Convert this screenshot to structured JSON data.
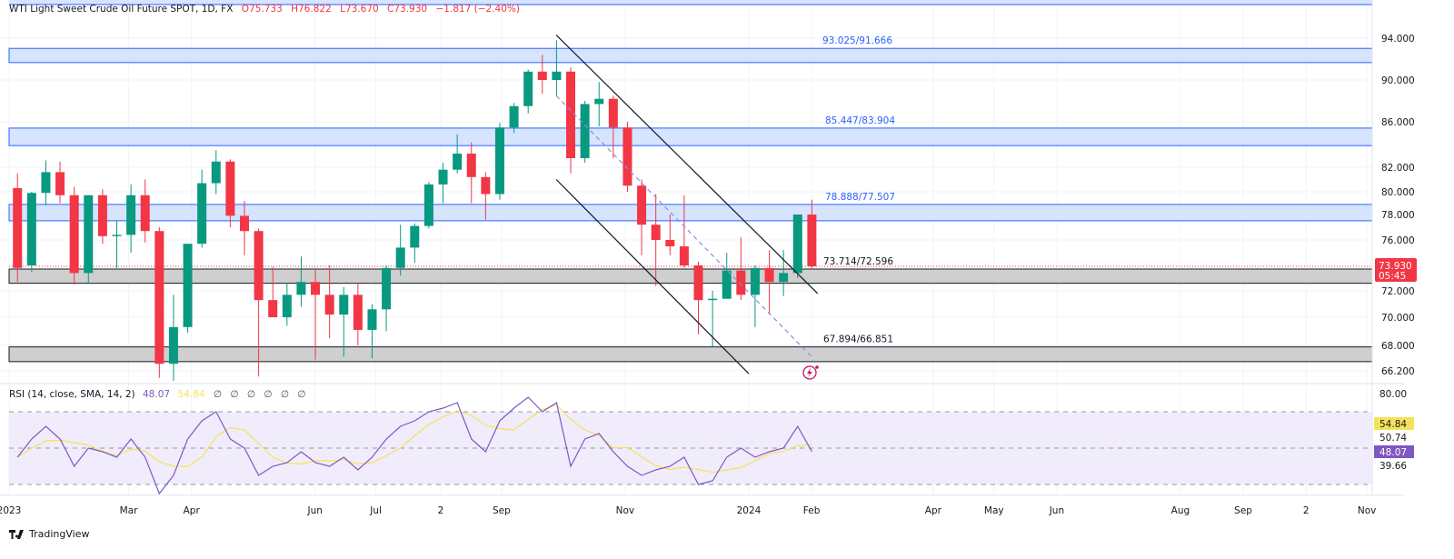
{
  "header": {
    "symbol": "WTI Light Sweet Crude Oil Future SPOT, 1D, FX",
    "open": "O75.733",
    "high": "H76.822",
    "low": "L73.670",
    "close": "C73.930",
    "change": "−1.817 (−2.40%)"
  },
  "rsi_legend": {
    "label": "RSI (14, close, SMA, 14, 2)",
    "rsi_value": "48.07",
    "sma_value": "54.84",
    "extras": [
      "∅",
      "∅",
      "∅",
      "∅",
      "∅",
      "∅"
    ]
  },
  "brand": "TradingView",
  "colors": {
    "up": "#089981",
    "down": "#f23645",
    "zone_blue": "#d6e4ff",
    "zone_blue_border": "#2962ff",
    "zone_gray": "#cfcfcf",
    "rsi": "#7e57c2",
    "rsi_sma": "#f5e25b",
    "rsi_band": "#f1ecfb",
    "channel": "#131722",
    "dashed": "#8c8ce0"
  },
  "chart_data": [
    {
      "type": "candlestick",
      "title": "WTI Light Sweet Crude Oil Future SPOT, 1D, FX",
      "y_scale": "log",
      "price_ticks": [
        "94.000",
        "90.000",
        "86.000",
        "82.000",
        "80.000",
        "78.000",
        "76.000",
        "72.000",
        "70.000",
        "68.000",
        "66.200"
      ],
      "tick_values": [
        94,
        90,
        86,
        82,
        80,
        78,
        76,
        72,
        70,
        68,
        66.2
      ],
      "last_price": "73.930",
      "countdown": "05:45",
      "x_ticks": [
        {
          "label": "2023",
          "date": "2023-01-01"
        },
        {
          "label": "Mar",
          "date": "2023-03-01"
        },
        {
          "label": "Apr",
          "date": "2023-04-01"
        },
        {
          "label": "Jun",
          "date": "2023-06-01"
        },
        {
          "label": "Jul",
          "date": "2023-07-01"
        },
        {
          "label": "2",
          "date": "2023-08-02"
        },
        {
          "label": "Sep",
          "date": "2023-09-01"
        },
        {
          "label": "Nov",
          "date": "2023-11-01"
        },
        {
          "label": "2024",
          "date": "2024-01-01"
        },
        {
          "label": "Feb",
          "date": "2024-02-01"
        },
        {
          "label": "Apr",
          "date": "2024-04-01"
        },
        {
          "label": "May",
          "date": "2024-05-01"
        },
        {
          "label": "Jun",
          "date": "2024-06-01"
        },
        {
          "label": "Aug",
          "date": "2024-08-01"
        },
        {
          "label": "Sep",
          "date": "2024-09-01"
        },
        {
          "label": "2",
          "date": "2024-10-02"
        },
        {
          "label": "Nov",
          "date": "2024-11-01"
        }
      ],
      "zones": [
        {
          "label": "93.025/91.666",
          "top": 93.025,
          "bottom": 91.666,
          "style": "blue"
        },
        {
          "label": "85.447/83.904",
          "top": 85.447,
          "bottom": 83.904,
          "style": "blue"
        },
        {
          "label": "78.888/77.507",
          "top": 78.888,
          "bottom": 77.507,
          "style": "blue"
        },
        {
          "label": "73.714/72.596",
          "top": 73.714,
          "bottom": 72.596,
          "style": "gray"
        },
        {
          "label": "67.894/66.851",
          "top": 67.894,
          "bottom": 66.851,
          "style": "gray"
        }
      ],
      "channel": {
        "upper": [
          {
            "date": "2023-09-28",
            "price": 94.3
          },
          {
            "date": "2024-02-04",
            "price": 71.8
          }
        ],
        "lower": [
          {
            "date": "2023-09-28",
            "price": 81.0
          },
          {
            "date": "2024-01-01",
            "price": 66.0
          }
        ],
        "midline_dashed": [
          {
            "date": "2023-09-28",
            "price": 88.5
          },
          {
            "date": "2024-02-01",
            "price": 67.2
          }
        ]
      },
      "candles": [
        [
          "2023-01-02",
          80.3,
          81.5,
          72.7,
          73.8
        ],
        [
          "2023-01-09",
          74,
          80,
          73.5,
          79.9
        ],
        [
          "2023-01-16",
          79.9,
          82.6,
          78.8,
          81.6
        ],
        [
          "2023-01-23",
          81.6,
          82.5,
          79,
          79.7
        ],
        [
          "2023-01-30",
          79.7,
          80.4,
          72.5,
          73.4
        ],
        [
          "2023-02-06",
          73.4,
          79.6,
          72.6,
          79.7
        ],
        [
          "2023-02-13",
          79.7,
          80.2,
          75.7,
          76.3
        ],
        [
          "2023-02-20",
          76.3,
          77.5,
          73.8,
          76.4
        ],
        [
          "2023-02-27",
          76.4,
          80.6,
          75,
          79.7
        ],
        [
          "2023-03-06",
          79.7,
          81,
          75.8,
          76.7
        ],
        [
          "2023-03-13",
          76.7,
          77,
          65.7,
          66.7
        ],
        [
          "2023-03-20",
          66.7,
          71.7,
          65.5,
          69.3
        ],
        [
          "2023-03-27",
          69.3,
          75.7,
          68.9,
          75.7
        ],
        [
          "2023-04-03",
          75.7,
          81.8,
          75.4,
          80.7
        ],
        [
          "2023-04-10",
          80.7,
          83.5,
          79.8,
          82.5
        ],
        [
          "2023-04-17",
          82.5,
          82.7,
          77,
          77.9
        ],
        [
          "2023-04-24",
          77.9,
          79.2,
          74.8,
          76.7
        ],
        [
          "2023-05-01",
          76.7,
          76.9,
          65.8,
          71.3
        ],
        [
          "2023-05-08",
          71.3,
          73.9,
          70,
          70
        ],
        [
          "2023-05-15",
          70,
          72.6,
          69.4,
          71.7
        ],
        [
          "2023-05-22",
          71.7,
          74.7,
          70.8,
          72.7
        ],
        [
          "2023-05-29",
          72.7,
          73.8,
          67,
          71.7
        ],
        [
          "2023-06-05",
          71.7,
          74,
          68.5,
          70.2
        ],
        [
          "2023-06-12",
          70.2,
          72.3,
          67.2,
          71.7
        ],
        [
          "2023-06-19",
          71.7,
          72.6,
          68,
          69.1
        ],
        [
          "2023-06-26",
          69.1,
          71,
          67.1,
          70.6
        ],
        [
          "2023-07-03",
          70.6,
          74,
          69,
          73.8
        ],
        [
          "2023-07-10",
          73.8,
          77.2,
          73.2,
          75.4
        ],
        [
          "2023-07-17",
          75.4,
          77.3,
          74.2,
          77.1
        ],
        [
          "2023-07-24",
          77.1,
          80.8,
          76.9,
          80.6
        ],
        [
          "2023-07-31",
          80.6,
          82.4,
          79,
          81.8
        ],
        [
          "2023-08-07",
          81.8,
          84.9,
          81.5,
          83.2
        ],
        [
          "2023-08-14",
          83.2,
          84.2,
          79,
          81.2
        ],
        [
          "2023-08-21",
          81.2,
          81.6,
          77.6,
          79.8
        ],
        [
          "2023-08-28",
          79.8,
          85.9,
          79.3,
          85.5
        ],
        [
          "2023-09-04",
          85.5,
          87.8,
          85,
          87.5
        ],
        [
          "2023-09-11",
          87.5,
          91,
          86.8,
          90.8
        ],
        [
          "2023-09-18",
          90.8,
          92.4,
          88.7,
          90
        ],
        [
          "2023-09-25",
          90,
          93.8,
          88.5,
          90.8
        ],
        [
          "2023-10-02",
          90.8,
          91.2,
          81.5,
          82.8
        ],
        [
          "2023-10-09",
          82.8,
          88,
          82.4,
          87.7
        ],
        [
          "2023-10-16",
          87.7,
          89.8,
          85.6,
          88.2
        ],
        [
          "2023-10-23",
          88.2,
          88.5,
          82.8,
          85.5
        ],
        [
          "2023-10-30",
          85.5,
          86,
          80,
          80.5
        ],
        [
          "2023-11-06",
          80.5,
          81,
          74.8,
          77.2
        ],
        [
          "2023-11-13",
          77.2,
          79.8,
          72.4,
          76
        ],
        [
          "2023-11-20",
          76,
          78,
          74.8,
          75.5
        ],
        [
          "2023-11-27",
          75.5,
          79.7,
          73.8,
          74
        ],
        [
          "2023-12-04",
          74,
          74.3,
          68.8,
          71.3
        ],
        [
          "2023-12-11",
          71.3,
          72,
          67.9,
          71.4
        ],
        [
          "2023-12-18",
          71.4,
          75,
          71.4,
          73.6
        ],
        [
          "2023-12-25",
          73.6,
          76.2,
          71.3,
          71.7
        ],
        [
          "2024-01-01",
          71.7,
          74,
          69.3,
          73.8
        ],
        [
          "2024-01-08",
          73.8,
          75.2,
          70.2,
          72.7
        ],
        [
          "2024-01-15",
          72.7,
          75.2,
          71.6,
          73.4
        ],
        [
          "2024-01-22",
          73.4,
          78,
          73,
          78
        ],
        [
          "2024-01-29",
          78,
          79.3,
          73.67,
          73.93
        ]
      ]
    },
    {
      "type": "line",
      "title": "RSI (14, close, SMA, 14, 2)",
      "ylim": [
        20,
        85
      ],
      "y_ticks": [
        "80.00",
        "54.84",
        "50.74",
        "48.07",
        "39.66"
      ],
      "bands": {
        "upper": 70,
        "middle": 50,
        "lower": 30
      },
      "rsi_last": "48.07",
      "sma_last": "54.84",
      "rsi_weekly": [
        45,
        55,
        62,
        55,
        40,
        50,
        48,
        45,
        55,
        45,
        25,
        35,
        55,
        65,
        70,
        55,
        50,
        35,
        40,
        42,
        48,
        42,
        40,
        45,
        38,
        45,
        55,
        62,
        65,
        70,
        72,
        75,
        55,
        48,
        65,
        72,
        78,
        70,
        75,
        40,
        55,
        58,
        48,
        40,
        35,
        38,
        40,
        45,
        30,
        32,
        45,
        50,
        45,
        48,
        50,
        62,
        48.07
      ]
    }
  ]
}
